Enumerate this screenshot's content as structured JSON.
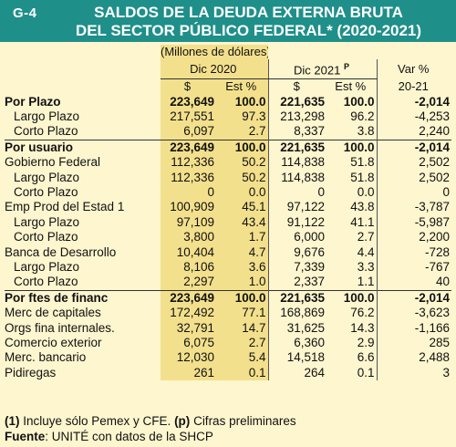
{
  "header": {
    "tag": "G-4",
    "title_line1": "SALDOS DE LA DEUDA EXTERNA BRUTA",
    "title_line2": "DEL SECTOR PÚBLICO FEDERAL* (2020-2021)"
  },
  "table": {
    "units": "(Millones de dólares)",
    "period_2020": "Dic 2020",
    "period_2021": "Dic 2021",
    "period_2021_sup": "P",
    "var_label": "Var %",
    "var_period": "20-21",
    "sub_currency": "$",
    "sub_structure": "Est %",
    "rows": [
      {
        "label": "Por Plazo",
        "v2020": "223,649",
        "e2020": "100.0",
        "v2021": "221,635",
        "e2021": "100.0",
        "var": "-2,014",
        "bold": true,
        "indent": false,
        "sep": false
      },
      {
        "label": "Largo Plazo",
        "v2020": "217,551",
        "e2020": "97.3",
        "v2021": "213,298",
        "e2021": "96.2",
        "var": "-4,253",
        "bold": false,
        "indent": true,
        "sep": false
      },
      {
        "label": "Corto Plazo",
        "v2020": "6,097",
        "e2020": "2.7",
        "v2021": "8,337",
        "e2021": "3.8",
        "var": "2,240",
        "bold": false,
        "indent": true,
        "sep": false
      },
      {
        "label": "Por usuario",
        "v2020": "223,649",
        "e2020": "100.0",
        "v2021": "221,635",
        "e2021": "100.0",
        "var": "-2,014",
        "bold": true,
        "indent": false,
        "sep": true
      },
      {
        "label": "Gobierno Federal",
        "v2020": "112,336",
        "e2020": "50.2",
        "v2021": "114,838",
        "e2021": "51.8",
        "var": "2,502",
        "bold": false,
        "indent": false,
        "sep": false
      },
      {
        "label": "Largo Plazo",
        "v2020": "112,336",
        "e2020": "50.2",
        "v2021": "114,838",
        "e2021": "51.8",
        "var": "2,502",
        "bold": false,
        "indent": true,
        "sep": false
      },
      {
        "label": "Corto Plazo",
        "v2020": "0",
        "e2020": "0.0",
        "v2021": "0",
        "e2021": "0.0",
        "var": "0",
        "bold": false,
        "indent": true,
        "sep": false
      },
      {
        "label": "Emp Prod del Estad 1",
        "v2020": "100,909",
        "e2020": "45.1",
        "v2021": "97,122",
        "e2021": "43.8",
        "var": "-3,787",
        "bold": false,
        "indent": false,
        "sep": false
      },
      {
        "label": "Largo Plazo",
        "v2020": "97,109",
        "e2020": "43.4",
        "v2021": "91,122",
        "e2021": "41.1",
        "var": "-5,987",
        "bold": false,
        "indent": true,
        "sep": false
      },
      {
        "label": "Corto Plazo",
        "v2020": "3,800",
        "e2020": "1.7",
        "v2021": "6,000",
        "e2021": "2.7",
        "var": "2,200",
        "bold": false,
        "indent": true,
        "sep": false
      },
      {
        "label": "Banca de Desarrollo",
        "v2020": "10,404",
        "e2020": "4.7",
        "v2021": "9,676",
        "e2021": "4.4",
        "var": "-728",
        "bold": false,
        "indent": false,
        "sep": false
      },
      {
        "label": "Largo Plazo",
        "v2020": "8,106",
        "e2020": "3.6",
        "v2021": "7,339",
        "e2021": "3.3",
        "var": "-767",
        "bold": false,
        "indent": true,
        "sep": false
      },
      {
        "label": "Corto Plazo",
        "v2020": "2,297",
        "e2020": "1.0",
        "v2021": "2,337",
        "e2021": "1.1",
        "var": "40",
        "bold": false,
        "indent": true,
        "sep": false
      },
      {
        "label": "Por ftes de financ",
        "v2020": "223,649",
        "e2020": "100.0",
        "v2021": "221,635",
        "e2021": "100.0",
        "var": "-2,014",
        "bold": true,
        "indent": false,
        "sep": true
      },
      {
        "label": "Merc de capitales",
        "v2020": "172,492",
        "e2020": "77.1",
        "v2021": "168,869",
        "e2021": "76.2",
        "var": "-3,623",
        "bold": false,
        "indent": false,
        "sep": false
      },
      {
        "label": "Orgs fina internales.",
        "v2020": "32,791",
        "e2020": "14.7",
        "v2021": "31,625",
        "e2021": "14.3",
        "var": "-1,166",
        "bold": false,
        "indent": false,
        "sep": false
      },
      {
        "label": "Comercio exterior",
        "v2020": "6,075",
        "e2020": "2.7",
        "v2021": "6,360",
        "e2021": "2.9",
        "var": "285",
        "bold": false,
        "indent": false,
        "sep": false
      },
      {
        "label": "Merc. bancario",
        "v2020": "12,030",
        "e2020": "5.4",
        "v2021": "14,518",
        "e2021": "6.6",
        "var": "2,488",
        "bold": false,
        "indent": false,
        "sep": false
      },
      {
        "label": "Pidiregas",
        "v2020": "261",
        "e2020": "0.1",
        "v2021": "264",
        "e2021": "0.1",
        "var": "3",
        "bold": false,
        "indent": false,
        "sep": false
      }
    ]
  },
  "notes": {
    "n1_mark": "(1)",
    "n1_text": " Incluye sólo Pemex y CFE. ",
    "n2_mark": "(p)",
    "n2_text": " Cifras preliminares",
    "source_label": "Fuente",
    "source_text": ": UNITÉ con datos de la SHCP"
  }
}
